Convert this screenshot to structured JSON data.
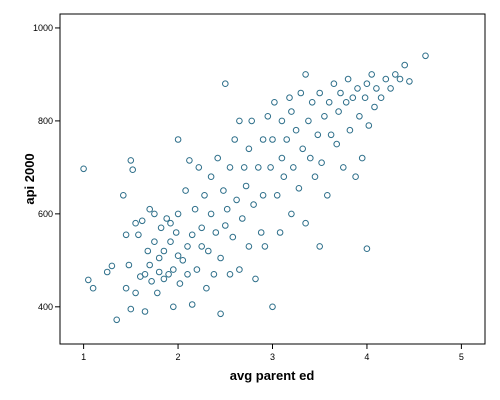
{
  "chart_data": {
    "type": "scatter",
    "title": "",
    "xlabel": "avg parent ed",
    "ylabel": "api 2000",
    "xlim": [
      0.75,
      5.25
    ],
    "ylim": [
      320,
      1030
    ],
    "xticks": [
      "1",
      "2",
      "3",
      "4",
      "5"
    ],
    "yticks": [
      "400",
      "600",
      "800",
      "1000"
    ],
    "grid": false,
    "marker_color": "#2e6f8a",
    "series": [
      {
        "points": [
          [
            1.0,
            697
          ],
          [
            1.05,
            458
          ],
          [
            1.1,
            440
          ],
          [
            1.25,
            475
          ],
          [
            1.3,
            488
          ],
          [
            1.35,
            372
          ],
          [
            1.42,
            640
          ],
          [
            1.45,
            440
          ],
          [
            1.45,
            555
          ],
          [
            1.48,
            490
          ],
          [
            1.5,
            715
          ],
          [
            1.5,
            395
          ],
          [
            1.52,
            695
          ],
          [
            1.55,
            430
          ],
          [
            1.55,
            580
          ],
          [
            1.58,
            555
          ],
          [
            1.6,
            465
          ],
          [
            1.62,
            585
          ],
          [
            1.65,
            390
          ],
          [
            1.65,
            470
          ],
          [
            1.68,
            520
          ],
          [
            1.7,
            490
          ],
          [
            1.7,
            610
          ],
          [
            1.72,
            455
          ],
          [
            1.75,
            540
          ],
          [
            1.75,
            600
          ],
          [
            1.78,
            430
          ],
          [
            1.8,
            505
          ],
          [
            1.8,
            475
          ],
          [
            1.82,
            570
          ],
          [
            1.85,
            460
          ],
          [
            1.85,
            520
          ],
          [
            1.88,
            590
          ],
          [
            1.9,
            470
          ],
          [
            1.92,
            540
          ],
          [
            1.92,
            580
          ],
          [
            1.95,
            480
          ],
          [
            1.95,
            400
          ],
          [
            1.98,
            560
          ],
          [
            2.0,
            760
          ],
          [
            2.0,
            510
          ],
          [
            2.0,
            600
          ],
          [
            2.02,
            450
          ],
          [
            2.05,
            500
          ],
          [
            2.08,
            650
          ],
          [
            2.1,
            530
          ],
          [
            2.1,
            470
          ],
          [
            2.12,
            715
          ],
          [
            2.15,
            555
          ],
          [
            2.15,
            405
          ],
          [
            2.18,
            610
          ],
          [
            2.2,
            480
          ],
          [
            2.22,
            700
          ],
          [
            2.25,
            530
          ],
          [
            2.25,
            570
          ],
          [
            2.28,
            640
          ],
          [
            2.3,
            440
          ],
          [
            2.32,
            520
          ],
          [
            2.35,
            600
          ],
          [
            2.35,
            680
          ],
          [
            2.38,
            470
          ],
          [
            2.4,
            560
          ],
          [
            2.42,
            720
          ],
          [
            2.45,
            385
          ],
          [
            2.45,
            505
          ],
          [
            2.48,
            650
          ],
          [
            2.5,
            880
          ],
          [
            2.5,
            575
          ],
          [
            2.52,
            610
          ],
          [
            2.55,
            700
          ],
          [
            2.55,
            470
          ],
          [
            2.58,
            550
          ],
          [
            2.6,
            760
          ],
          [
            2.62,
            630
          ],
          [
            2.65,
            480
          ],
          [
            2.65,
            800
          ],
          [
            2.68,
            590
          ],
          [
            2.7,
            700
          ],
          [
            2.72,
            660
          ],
          [
            2.75,
            530
          ],
          [
            2.75,
            740
          ],
          [
            2.78,
            800
          ],
          [
            2.8,
            620
          ],
          [
            2.82,
            460
          ],
          [
            2.85,
            700
          ],
          [
            2.88,
            560
          ],
          [
            2.9,
            760
          ],
          [
            2.9,
            640
          ],
          [
            2.92,
            530
          ],
          [
            2.95,
            810
          ],
          [
            2.98,
            700
          ],
          [
            3.0,
            400
          ],
          [
            3.0,
            760
          ],
          [
            3.02,
            840
          ],
          [
            3.05,
            640
          ],
          [
            3.08,
            560
          ],
          [
            3.1,
            720
          ],
          [
            3.1,
            800
          ],
          [
            3.12,
            680
          ],
          [
            3.15,
            760
          ],
          [
            3.18,
            850
          ],
          [
            3.2,
            600
          ],
          [
            3.2,
            820
          ],
          [
            3.22,
            700
          ],
          [
            3.25,
            780
          ],
          [
            3.28,
            655
          ],
          [
            3.3,
            860
          ],
          [
            3.32,
            740
          ],
          [
            3.35,
            900
          ],
          [
            3.35,
            580
          ],
          [
            3.38,
            800
          ],
          [
            3.4,
            720
          ],
          [
            3.42,
            840
          ],
          [
            3.45,
            680
          ],
          [
            3.48,
            770
          ],
          [
            3.5,
            530
          ],
          [
            3.5,
            860
          ],
          [
            3.52,
            710
          ],
          [
            3.55,
            810
          ],
          [
            3.58,
            640
          ],
          [
            3.6,
            840
          ],
          [
            3.62,
            770
          ],
          [
            3.65,
            880
          ],
          [
            3.68,
            750
          ],
          [
            3.7,
            820
          ],
          [
            3.72,
            860
          ],
          [
            3.75,
            700
          ],
          [
            3.78,
            840
          ],
          [
            3.8,
            890
          ],
          [
            3.82,
            780
          ],
          [
            3.85,
            850
          ],
          [
            3.88,
            680
          ],
          [
            3.9,
            870
          ],
          [
            3.92,
            810
          ],
          [
            3.95,
            720
          ],
          [
            3.98,
            850
          ],
          [
            4.0,
            525
          ],
          [
            4.0,
            880
          ],
          [
            4.02,
            790
          ],
          [
            4.05,
            900
          ],
          [
            4.08,
            830
          ],
          [
            4.1,
            870
          ],
          [
            4.15,
            850
          ],
          [
            4.2,
            890
          ],
          [
            4.25,
            870
          ],
          [
            4.3,
            900
          ],
          [
            4.35,
            890
          ],
          [
            4.4,
            920
          ],
          [
            4.45,
            885
          ],
          [
            4.62,
            940
          ]
        ]
      }
    ]
  }
}
